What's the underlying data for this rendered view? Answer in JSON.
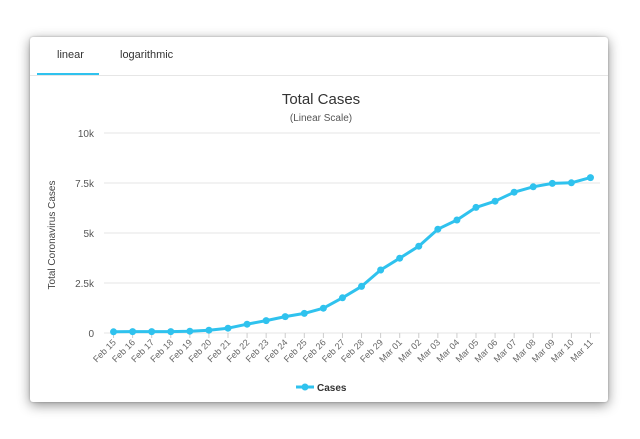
{
  "tabs": {
    "linear": "linear",
    "logarithmic": "logarithmic",
    "active": "linear"
  },
  "colors": {
    "series": "#2fc2ee",
    "grid": "#e6e6e6",
    "active_tab": "#2fc2ee"
  },
  "chart_data": {
    "type": "line",
    "title": "Total Cases",
    "subtitle": "(Linear Scale)",
    "xlabel": "",
    "ylabel": "Total Coronavirus Cases",
    "ylim": [
      0,
      10000
    ],
    "yticks": [
      0,
      2500,
      5000,
      7500,
      10000
    ],
    "ytick_labels": [
      "0",
      "2.5k",
      "5k",
      "7.5k",
      "10k"
    ],
    "grid": true,
    "legend": "bottom-center",
    "categories": [
      "Feb 15",
      "Feb 16",
      "Feb 17",
      "Feb 18",
      "Feb 19",
      "Feb 20",
      "Feb 21",
      "Feb 22",
      "Feb 23",
      "Feb 24",
      "Feb 25",
      "Feb 26",
      "Feb 27",
      "Feb 28",
      "Feb 29",
      "Mar 01",
      "Mar 02",
      "Mar 03",
      "Mar 04",
      "Mar 05",
      "Mar 06",
      "Mar 07",
      "Mar 08",
      "Mar 09",
      "Mar 10",
      "Mar 11"
    ],
    "series": [
      {
        "name": "Cases",
        "values": [
          60,
          70,
          70,
          70,
          90,
          140,
          240,
          440,
          620,
          820,
          980,
          1240,
          1760,
          2330,
          3150,
          3740,
          4340,
          5190,
          5650,
          6280,
          6590,
          7040,
          7310,
          7480,
          7510,
          7770
        ]
      }
    ]
  }
}
